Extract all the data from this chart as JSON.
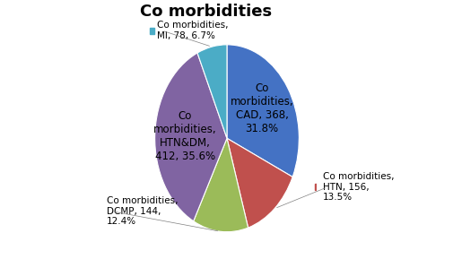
{
  "title": "Co morbidities",
  "slices": [
    {
      "label_inside": "Co\nmorbidities,\nCAD, 368,\n31.8%",
      "label_outside": null,
      "value": 368,
      "color": "#4472C4"
    },
    {
      "label_inside": null,
      "label_outside": "Co morbidities,\nHTN, 156,\n13.5%",
      "value": 156,
      "color": "#C0504D"
    },
    {
      "label_inside": null,
      "label_outside": "Co morbidities,\nDCMP, 144,\n12.4%",
      "value": 144,
      "color": "#9BBB59"
    },
    {
      "label_inside": "Co\nmorbidities,\nHTN&DM,\n412, 35.6%",
      "label_outside": null,
      "value": 412,
      "color": "#8064A2"
    },
    {
      "label_inside": null,
      "label_outside": "Co morbidities,\nMI, 78, 6.7%",
      "value": 78,
      "color": "#4BACC6"
    }
  ],
  "startangle": 90,
  "title_fontsize": 13,
  "title_fontweight": "bold",
  "background_color": "#FFFFFF",
  "label_fontsize": 7.5,
  "inside_label_fontsize": 8.5
}
